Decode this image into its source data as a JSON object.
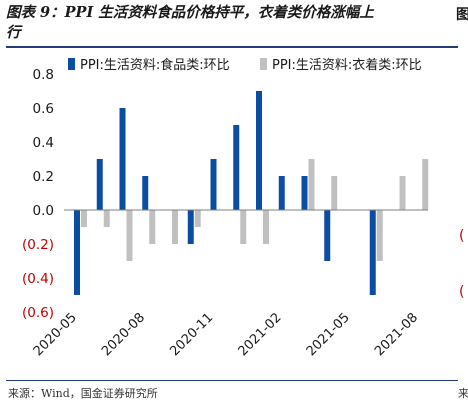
{
  "title_lines": [
    "图表 9：PPI 生活资料食品价格持平，衣着类价格涨幅上",
    "行"
  ],
  "edge_mark": "图",
  "side_labels": [
    "(",
    "("
  ],
  "source": "来源：Wind，国金证券研究所",
  "source_edge": "来",
  "colors": {
    "food": "#0b4da2",
    "clothing": "#c0c0c0",
    "negative_label": "#c00000"
  },
  "chart_data": {
    "type": "bar",
    "title": "",
    "xlabel": "",
    "ylabel": "",
    "ylim": [
      -0.6,
      0.8
    ],
    "yticks": [
      0.8,
      0.6,
      0.4,
      0.2,
      0.0,
      -0.2,
      -0.4,
      -0.6
    ],
    "ytick_labels": [
      "0.8",
      "0.6",
      "0.4",
      "0.2",
      "0.0",
      "(0.2)",
      "(0.4)",
      "(0.6)"
    ],
    "grid": false,
    "legend_position": "top",
    "categories": [
      "2020-05",
      "2020-06",
      "2020-07",
      "2020-08",
      "2020-09",
      "2020-10",
      "2020-11",
      "2020-12",
      "2021-01",
      "2021-02",
      "2021-03",
      "2021-04",
      "2021-05",
      "2021-06",
      "2021-07",
      "2021-08"
    ],
    "xtick_labels": [
      "2020-05",
      "2020-08",
      "2020-11",
      "2021-02",
      "2021-05",
      "2021-08"
    ],
    "series": [
      {
        "name": "PPI:生活资料:食品类:环比",
        "color": "#0b4da2",
        "values": [
          -0.5,
          0.3,
          0.6,
          0.2,
          0.0,
          -0.2,
          0.3,
          0.5,
          0.7,
          0.2,
          0.2,
          -0.3,
          0.0,
          -0.5,
          0.0,
          0.0
        ]
      },
      {
        "name": "PPI:生活资料:衣着类:环比",
        "color": "#c0c0c0",
        "values": [
          -0.1,
          -0.1,
          -0.3,
          -0.2,
          -0.2,
          -0.1,
          0.0,
          -0.2,
          -0.2,
          0.0,
          0.3,
          0.2,
          0.0,
          -0.3,
          0.2,
          0.3
        ]
      }
    ]
  }
}
